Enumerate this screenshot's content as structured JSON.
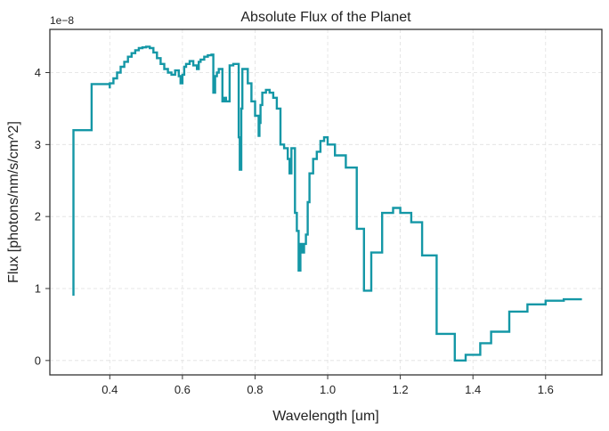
{
  "chart_data": {
    "type": "line",
    "title": "Absolute Flux of the Planet",
    "xlabel": "Wavelength [um]",
    "ylabel": "Flux [photons/nm/s/cm^2]",
    "y_offset_label": "1e−8",
    "xlim": [
      0.235,
      1.755
    ],
    "ylim": [
      -0.2,
      4.6
    ],
    "x_ticks": [
      0.4,
      0.6,
      0.8,
      1.0,
      1.2,
      1.4,
      1.6
    ],
    "x_tick_labels": [
      "0.4",
      "0.6",
      "0.8",
      "1.0",
      "1.2",
      "1.4",
      "1.6"
    ],
    "y_ticks": [
      0,
      1,
      2,
      3,
      4
    ],
    "y_tick_labels": [
      "0",
      "1",
      "2",
      "3",
      "4"
    ],
    "grid": true,
    "line_color": "#1497a6",
    "series": [
      {
        "step": "post",
        "x": [
          0.3,
          0.3,
          0.35,
          0.4,
          0.4,
          0.41,
          0.42,
          0.43,
          0.44,
          0.45,
          0.46,
          0.47,
          0.48,
          0.49,
          0.5,
          0.51,
          0.52,
          0.53,
          0.54,
          0.55,
          0.56,
          0.57,
          0.58,
          0.59,
          0.595,
          0.6,
          0.605,
          0.61,
          0.62,
          0.63,
          0.64,
          0.645,
          0.65,
          0.66,
          0.67,
          0.68,
          0.685,
          0.69,
          0.695,
          0.7,
          0.71,
          0.715,
          0.72,
          0.73,
          0.74,
          0.755,
          0.758,
          0.762,
          0.765,
          0.77,
          0.78,
          0.79,
          0.8,
          0.81,
          0.812,
          0.815,
          0.82,
          0.83,
          0.84,
          0.85,
          0.86,
          0.87,
          0.88,
          0.89,
          0.895,
          0.9,
          0.91,
          0.915,
          0.92,
          0.925,
          0.93,
          0.935,
          0.94,
          0.945,
          0.95,
          0.96,
          0.97,
          0.98,
          0.99,
          1.0,
          1.02,
          1.05,
          1.08,
          1.1,
          1.12,
          1.15,
          1.18,
          1.2,
          1.23,
          1.26,
          1.3,
          1.35,
          1.38,
          1.42,
          1.45,
          1.5,
          1.55,
          1.6,
          1.65,
          1.7
        ],
        "y": [
          0.9,
          3.2,
          3.84,
          3.78,
          3.85,
          3.92,
          4.0,
          4.08,
          4.15,
          4.22,
          4.27,
          4.31,
          4.34,
          4.35,
          4.36,
          4.34,
          4.28,
          4.2,
          4.12,
          4.05,
          4.0,
          3.97,
          4.03,
          3.95,
          3.85,
          3.97,
          4.08,
          4.12,
          4.16,
          4.1,
          4.05,
          4.15,
          4.18,
          4.22,
          4.24,
          4.25,
          3.72,
          3.95,
          4.0,
          4.05,
          3.6,
          3.65,
          3.6,
          4.1,
          4.12,
          3.1,
          2.65,
          3.5,
          4.05,
          4.05,
          3.85,
          3.6,
          3.4,
          3.12,
          3.3,
          3.55,
          3.72,
          3.76,
          3.72,
          3.65,
          3.5,
          3.0,
          2.95,
          2.8,
          2.6,
          2.95,
          2.05,
          1.8,
          1.25,
          1.62,
          1.5,
          1.62,
          1.75,
          2.2,
          2.6,
          2.8,
          2.9,
          3.05,
          3.1,
          3.0,
          2.85,
          2.68,
          1.83,
          0.97,
          1.5,
          2.05,
          2.12,
          2.05,
          1.92,
          1.46,
          0.37,
          0.0,
          0.08,
          0.24,
          0.4,
          0.68,
          0.78,
          0.83,
          0.85,
          0.85
        ]
      }
    ]
  }
}
